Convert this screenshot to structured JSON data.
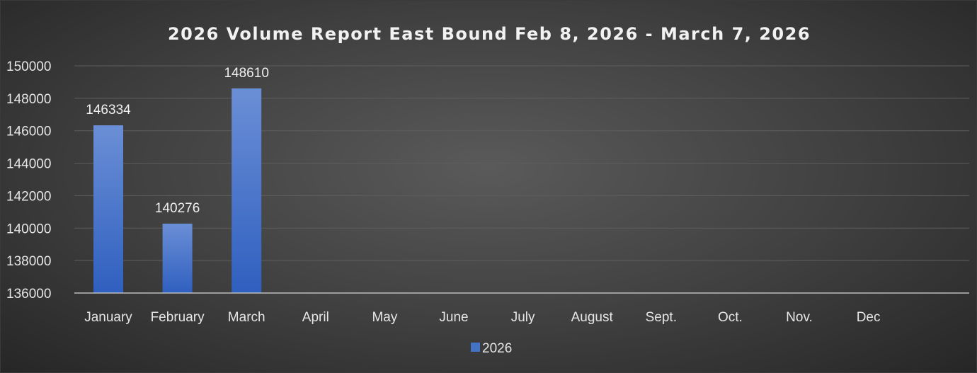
{
  "chart_data": {
    "type": "bar",
    "title": "2026 Volume Report East Bound Feb 8, 2026 - March 7, 2026",
    "categories": [
      "January",
      "February",
      "March",
      "April",
      "May",
      "June",
      "July",
      "August",
      "Sept.",
      "Oct.",
      "Nov.",
      "Dec"
    ],
    "series": [
      {
        "name": "2026",
        "values": [
          146334,
          140276,
          148610,
          null,
          null,
          null,
          null,
          null,
          null,
          null,
          null,
          null
        ],
        "color": "#4472c4"
      }
    ],
    "data_labels": [
      "146334",
      "140276",
      "148610"
    ],
    "ylim": [
      136000,
      150000
    ],
    "yticks": [
      136000,
      138000,
      140000,
      142000,
      144000,
      146000,
      148000,
      150000
    ],
    "ytick_labels": [
      "136000",
      "138000",
      "140000",
      "142000",
      "144000",
      "146000",
      "148000",
      "150000"
    ],
    "xlabel": "",
    "ylabel": "",
    "grid": true,
    "legend": "bottom"
  },
  "colors": {
    "background": "#404040",
    "bar": "#4472c4",
    "text": "#e6e6e6",
    "grid": "#5e5e5e"
  }
}
